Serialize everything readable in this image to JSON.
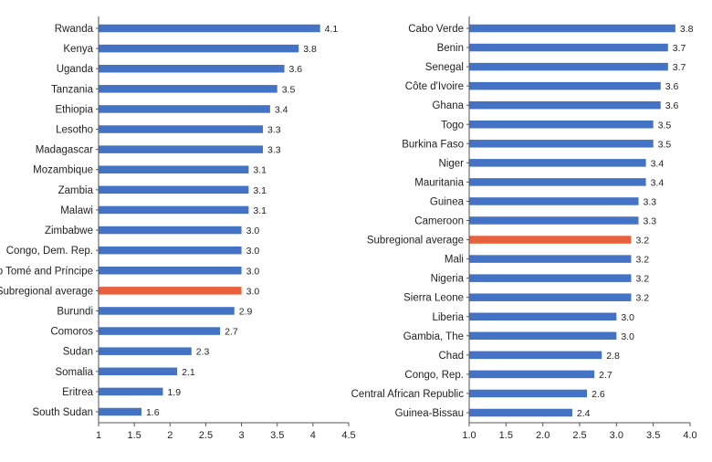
{
  "colors": {
    "bar": "#4472C4",
    "highlight": "#E8603C"
  },
  "chart_data": [
    {
      "type": "bar",
      "orientation": "horizontal",
      "highlight_category": "Subregional average",
      "xlim": [
        1,
        4.5
      ],
      "tick_labels": [
        "1",
        "1.5",
        "2",
        "2.5",
        "3",
        "3.5",
        "4",
        "4.5"
      ],
      "ticks": [
        1,
        1.5,
        2,
        2.5,
        3,
        3.5,
        4,
        4.5
      ],
      "categories": [
        "Rwanda",
        "Kenya",
        "Uganda",
        "Tanzania",
        "Ethiopia",
        "Lesotho",
        "Madagascar",
        "Mozambique",
        "Zambia",
        "Malawi",
        "Zimbabwe",
        "Congo, Dem. Rep.",
        "São Tomé and Príncipe",
        "Subregional average",
        "Burundi",
        "Comoros",
        "Sudan",
        "Somalia",
        "Eritrea",
        "South Sudan"
      ],
      "values": [
        4.1,
        3.8,
        3.6,
        3.5,
        3.4,
        3.3,
        3.3,
        3.1,
        3.1,
        3.1,
        3.0,
        3.0,
        3.0,
        3.0,
        2.9,
        2.7,
        2.3,
        2.1,
        1.9,
        1.6
      ],
      "value_labels": [
        "4.1",
        "3.8",
        "3.6",
        "3.5",
        "3.4",
        "3.3",
        "3.3",
        "3.1",
        "3.1",
        "3.1",
        "3.0",
        "3.0",
        "3.0",
        "3.0",
        "2.9",
        "2.7",
        "2.3",
        "2.1",
        "1.9",
        "1.6"
      ]
    },
    {
      "type": "bar",
      "orientation": "horizontal",
      "highlight_category": "Subregional average",
      "xlim": [
        1,
        4
      ],
      "tick_labels": [
        "1.0",
        "1.5",
        "2.0",
        "2.5",
        "3.0",
        "3.5",
        "4.0"
      ],
      "ticks": [
        1,
        1.5,
        2,
        2.5,
        3,
        3.5,
        4
      ],
      "categories": [
        "Cabo Verde",
        "Benin",
        "Senegal",
        "Côte d'Ivoire",
        "Ghana",
        "Togo",
        "Burkina Faso",
        "Niger",
        "Mauritania",
        "Guinea",
        "Cameroon",
        "Subregional average",
        "Mali",
        "Nigeria",
        "Sierra Leone",
        "Liberia",
        "Gambia, The",
        "Chad",
        "Congo, Rep.",
        "Central African Republic",
        "Guinea-Bissau"
      ],
      "values": [
        3.8,
        3.7,
        3.7,
        3.6,
        3.6,
        3.5,
        3.5,
        3.4,
        3.4,
        3.3,
        3.3,
        3.2,
        3.2,
        3.2,
        3.2,
        3.0,
        3.0,
        2.8,
        2.7,
        2.6,
        2.4
      ],
      "value_labels": [
        "3.8",
        "3.7",
        "3.7",
        "3.6",
        "3.6",
        "3.5",
        "3.5",
        "3.4",
        "3.4",
        "3.3",
        "3.3",
        "3.2",
        "3.2",
        "3.2",
        "3.2",
        "3.0",
        "3.0",
        "2.8",
        "2.7",
        "2.6",
        "2.4"
      ]
    }
  ]
}
